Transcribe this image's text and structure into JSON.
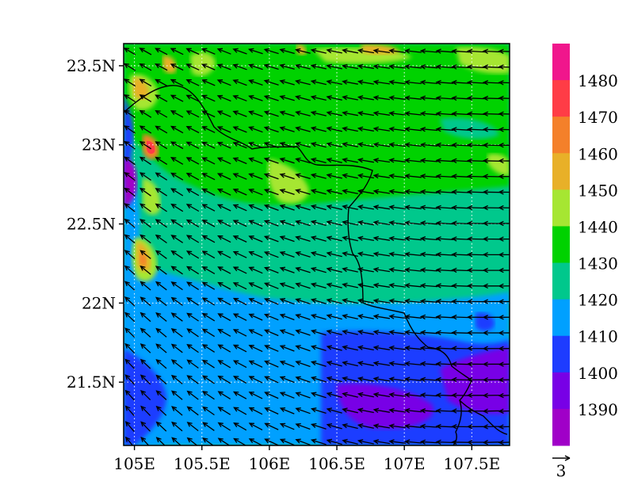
{
  "map": {
    "lat_labels": [
      "23.5N",
      "23N",
      "22.5N",
      "22N",
      "21.5N"
    ],
    "lon_labels": [
      "105E",
      "105.5E",
      "106E",
      "106.5E",
      "107E",
      "107.5E"
    ],
    "lat_values": [
      23.5,
      23.0,
      22.5,
      22.0,
      21.5
    ],
    "lon_values": [
      105.0,
      105.5,
      106.0,
      106.5,
      107.0,
      107.5
    ],
    "lon_range": [
      104.92,
      107.78
    ],
    "lat_range": [
      21.1,
      23.64
    ],
    "gridlines": "dotted"
  },
  "colorbar": {
    "labels": [
      "1480",
      "1470",
      "1460",
      "1450",
      "1440",
      "1430",
      "1420",
      "1410",
      "1400",
      "1390"
    ],
    "colors_top_to_bottom": [
      "#f0168c",
      "#ff3c46",
      "#f4802a",
      "#e8b028",
      "#a6e632",
      "#00d200",
      "#00c88c",
      "#00a0ff",
      "#1e3cff",
      "#7800e6",
      "#a000c8"
    ]
  },
  "vector_reference": {
    "label": "3"
  },
  "colors": {
    "frame": "#000000",
    "arrow": "#000000",
    "border_line": "#000000",
    "grid": "#ffffff"
  }
}
